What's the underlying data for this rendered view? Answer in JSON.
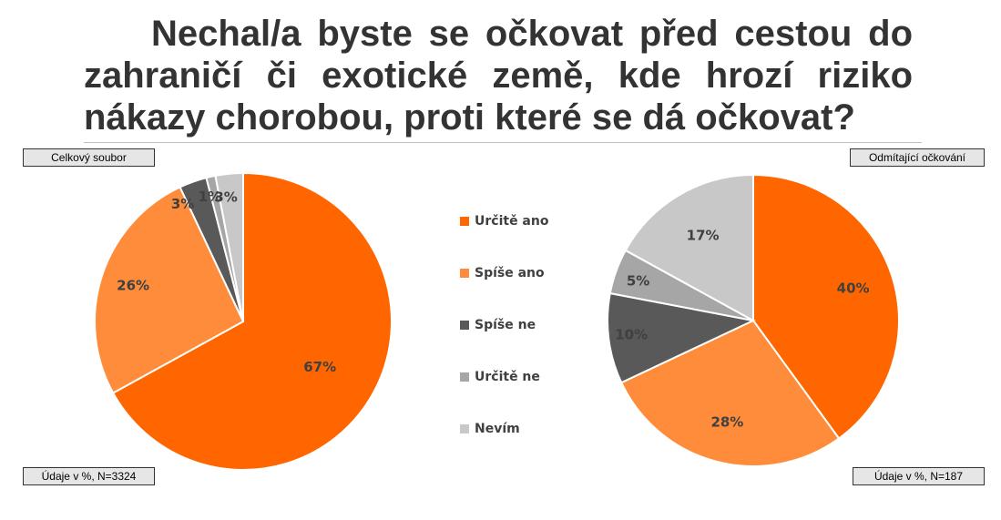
{
  "title": "Nechal/a byste se očkovat před cestou do zahraničí či exotické země, kde hrozí riziko nákazy chorobou, proti které se dá očkovat?",
  "legend": [
    {
      "label": "Určitě ano",
      "color": "#ff6600"
    },
    {
      "label": "Spíše ano",
      "color": "#ff8c3a"
    },
    {
      "label": "Spíše ne",
      "color": "#595959"
    },
    {
      "label": "Určitě ne",
      "color": "#a6a6a6"
    },
    {
      "label": "Nevím",
      "color": "#c8c8c8"
    }
  ],
  "chart_data": [
    {
      "type": "pie",
      "label": "Celkový soubor",
      "note": "Údaje v %, N=3324",
      "categories": [
        "Určitě ano",
        "Spíše ano",
        "Spíše ne",
        "Určitě ne",
        "Nevím"
      ],
      "values": [
        67,
        26,
        3,
        1,
        3
      ],
      "data_labels": [
        "67%",
        "26%",
        "3%",
        "1%",
        "3%"
      ]
    },
    {
      "type": "pie",
      "label": "Odmítající očkování",
      "note": "Údaje v %, N=187",
      "categories": [
        "Určitě ano",
        "Spíše ano",
        "Spíše ne",
        "Určitě ne",
        "Nevím"
      ],
      "values": [
        40,
        28,
        10,
        5,
        17
      ],
      "data_labels": [
        "40%",
        "28%",
        "10%",
        "5%",
        "17%"
      ]
    }
  ]
}
